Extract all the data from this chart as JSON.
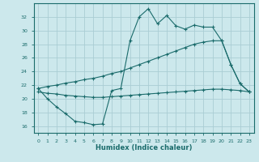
{
  "title": "",
  "xlabel": "Humidex (Indice chaleur)",
  "background_color": "#cce8ec",
  "grid_color": "#aacdd4",
  "line_color": "#1a6b6b",
  "x_ticks": [
    0,
    1,
    2,
    3,
    4,
    5,
    6,
    7,
    8,
    9,
    10,
    11,
    12,
    13,
    14,
    15,
    16,
    17,
    18,
    19,
    20,
    21,
    22,
    23
  ],
  "ylim": [
    15.0,
    34.0
  ],
  "yticks": [
    16,
    18,
    20,
    22,
    24,
    26,
    28,
    30,
    32
  ],
  "line1": [
    21.5,
    20.0,
    18.8,
    17.8,
    16.7,
    16.5,
    16.2,
    16.3,
    21.2,
    21.5,
    28.5,
    32.0,
    33.2,
    31.0,
    32.2,
    30.7,
    30.2,
    30.8,
    30.5,
    30.5,
    28.5,
    25.0,
    22.2,
    21.0
  ],
  "line2": [
    21.5,
    21.8,
    22.0,
    22.3,
    22.5,
    22.8,
    23.0,
    23.3,
    23.7,
    24.0,
    24.5,
    25.0,
    25.5,
    26.0,
    26.5,
    27.0,
    27.5,
    28.0,
    28.3,
    28.5,
    28.5,
    25.0,
    22.2,
    21.0
  ],
  "line3": [
    21.0,
    20.8,
    20.7,
    20.5,
    20.4,
    20.3,
    20.2,
    20.2,
    20.3,
    20.4,
    20.5,
    20.6,
    20.7,
    20.8,
    20.9,
    21.0,
    21.1,
    21.2,
    21.3,
    21.4,
    21.4,
    21.3,
    21.2,
    21.0
  ]
}
